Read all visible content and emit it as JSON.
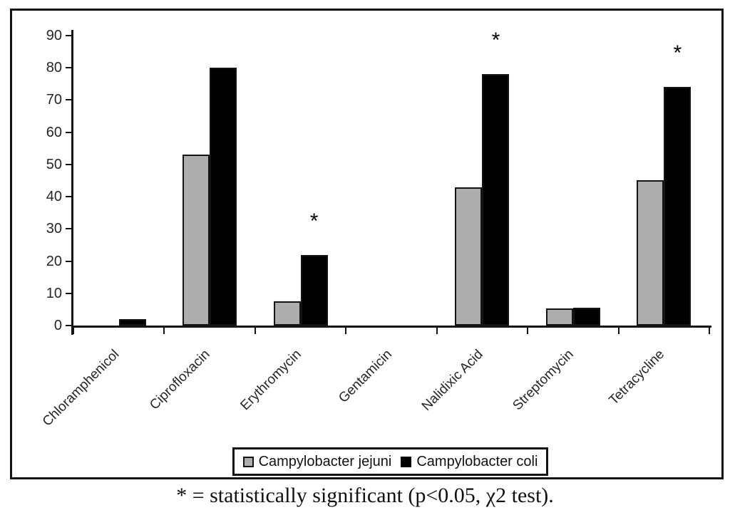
{
  "figure": {
    "caption": "* = statistically significant (p<0.05, χ2 test)."
  },
  "chart_data": {
    "type": "bar",
    "title": "",
    "xlabel": "",
    "ylabel": "",
    "categories": [
      "Chloramphenicol",
      "Ciprofloxacin",
      "Erythromycin",
      "Gentamicin",
      "Nalidixic Acid",
      "Streptomycin",
      "Tetracycline"
    ],
    "series": [
      {
        "name": "Campylobacter jejuni",
        "color": "#adadad",
        "values": [
          0,
          53,
          7.5,
          0,
          43,
          5.3,
          45
        ]
      },
      {
        "name": "Campylobacter coli",
        "color": "#000000",
        "values": [
          2,
          80,
          22,
          0,
          78,
          5.6,
          74
        ]
      }
    ],
    "significant_flags": [
      false,
      false,
      true,
      false,
      true,
      false,
      true
    ],
    "significant_categories": [
      "Erythromycin",
      "Nalidixic Acid",
      "Tetracycline"
    ],
    "significance_marker": "*",
    "ylim": [
      0,
      90
    ],
    "yticks": [
      0,
      10,
      20,
      30,
      40,
      50,
      60,
      70,
      80,
      90
    ],
    "grid": false,
    "legend_position": "bottom"
  }
}
